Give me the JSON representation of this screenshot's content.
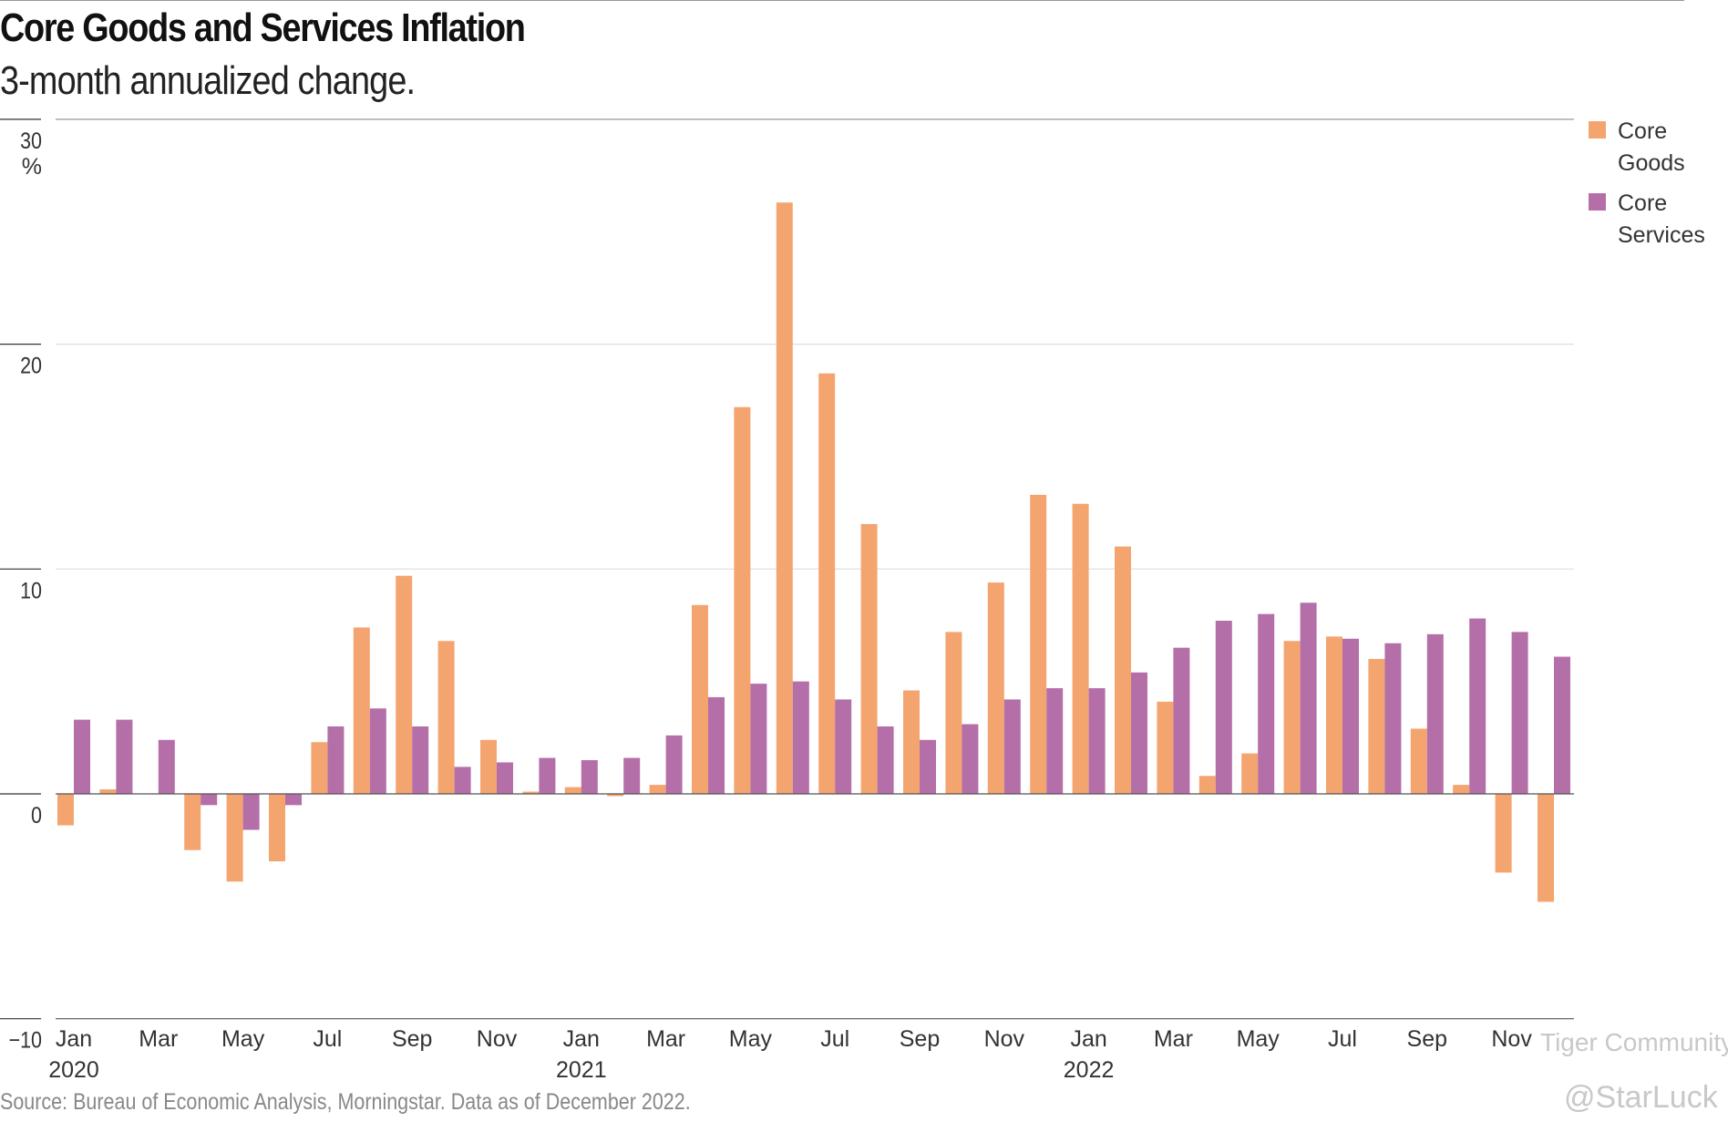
{
  "title": "Core Goods and Services Inflation",
  "subtitle": "3-month annualized change.",
  "source": "Source: Bureau of Economic Analysis, Morningstar. Data as of December 2022.",
  "watermark": {
    "line1": "Tiger Community",
    "line2": "@StarLuck"
  },
  "colors": {
    "core_goods": "#f4a56f",
    "core_services": "#b46fa8"
  },
  "chart_data": {
    "type": "bar",
    "title": "Core Goods and Services Inflation",
    "subtitle": "3-month annualized change.",
    "ylabel_unit": "%",
    "ylim": [
      -10,
      30
    ],
    "yticks": [
      "30",
      "20",
      "10",
      "0",
      "−10"
    ],
    "yticks_values": [
      30,
      20,
      10,
      0,
      -10
    ],
    "xtick_labels": [
      {
        "month": "Jan",
        "year": "2020"
      },
      {
        "month": "Mar"
      },
      {
        "month": "May"
      },
      {
        "month": "Jul"
      },
      {
        "month": "Sep"
      },
      {
        "month": "Nov"
      },
      {
        "month": "Jan",
        "year": "2021"
      },
      {
        "month": "Mar"
      },
      {
        "month": "May"
      },
      {
        "month": "Jul"
      },
      {
        "month": "Sep"
      },
      {
        "month": "Nov"
      },
      {
        "month": "Jan",
        "year": "2022"
      },
      {
        "month": "Mar"
      },
      {
        "month": "May"
      },
      {
        "month": "Jul"
      },
      {
        "month": "Sep"
      },
      {
        "month": "Nov"
      }
    ],
    "categories": [
      "2020-01",
      "2020-02",
      "2020-03",
      "2020-04",
      "2020-05",
      "2020-06",
      "2020-07",
      "2020-08",
      "2020-09",
      "2020-10",
      "2020-11",
      "2020-12",
      "2021-01",
      "2021-02",
      "2021-03",
      "2021-04",
      "2021-05",
      "2021-06",
      "2021-07",
      "2021-08",
      "2021-09",
      "2021-10",
      "2021-11",
      "2021-12",
      "2022-01",
      "2022-02",
      "2022-03",
      "2022-04",
      "2022-05",
      "2022-06",
      "2022-07",
      "2022-08",
      "2022-09",
      "2022-10",
      "2022-11",
      "2022-12"
    ],
    "series": [
      {
        "name": "Core Goods",
        "legend": [
          "Core",
          "Goods"
        ],
        "color": "#f4a56f",
        "values": [
          -1.4,
          0.2,
          0,
          -2.5,
          -3.9,
          -3.0,
          2.3,
          7.4,
          9.7,
          6.8,
          2.4,
          0.1,
          0.3,
          -0.1,
          0.4,
          8.4,
          17.2,
          26.3,
          18.7,
          12.0,
          4.6,
          7.2,
          9.4,
          13.3,
          12.9,
          11.0,
          4.1,
          0.8,
          1.8,
          6.8,
          7.0,
          6.0,
          2.9,
          0.4,
          -3.5,
          -4.8
        ]
      },
      {
        "name": "Core Services",
        "legend": [
          "Core",
          "Services"
        ],
        "color": "#b46fa8",
        "values": [
          3.3,
          3.3,
          2.4,
          -0.5,
          -1.6,
          -0.5,
          3.0,
          3.8,
          3.0,
          1.2,
          1.4,
          1.6,
          1.5,
          1.6,
          2.6,
          4.3,
          4.9,
          5.0,
          4.2,
          3.0,
          2.4,
          3.1,
          4.2,
          4.7,
          4.7,
          5.4,
          6.5,
          7.7,
          8.0,
          8.5,
          6.9,
          6.7,
          7.1,
          7.8,
          7.2,
          6.1
        ]
      }
    ],
    "grid": true,
    "legend_position": "right"
  }
}
